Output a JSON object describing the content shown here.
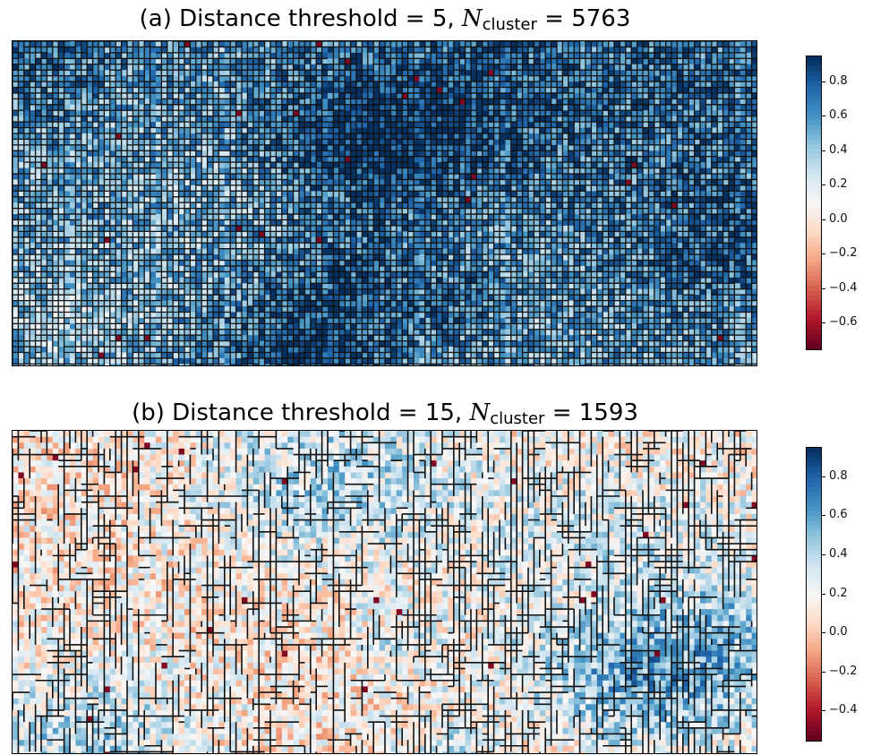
{
  "chart_data": [
    {
      "type": "heatmap",
      "title": {
        "prefix": "(a) Distance threshold = 5, ",
        "symbol": "N",
        "subscript": "cluster",
        "suffix": " = 5763"
      },
      "distance_threshold": 5,
      "n_cluster": 5763,
      "colormap": "RdBu",
      "colorbar": {
        "min": -0.75,
        "max": 0.95,
        "ticks": [
          0.8,
          0.6,
          0.4,
          0.2,
          0.0,
          -0.2,
          -0.4,
          -0.6
        ],
        "tick_labels": [
          "0.8",
          "0.6",
          "0.4",
          "0.2",
          "0.0",
          "−0.2",
          "−0.4",
          "−0.6"
        ]
      },
      "mean_value": 0.55,
      "cluster_block_size": "small",
      "boundaries": "black cluster outlines"
    },
    {
      "type": "heatmap",
      "title": {
        "prefix": "(b) Distance threshold = 15, ",
        "symbol": "N",
        "subscript": "cluster",
        "suffix": " = 1593"
      },
      "distance_threshold": 15,
      "n_cluster": 1593,
      "colormap": "RdBu",
      "colorbar": {
        "min": -0.55,
        "max": 0.95,
        "ticks": [
          0.8,
          0.6,
          0.4,
          0.2,
          0.0,
          -0.2,
          -0.4
        ],
        "tick_labels": [
          "0.8",
          "0.6",
          "0.4",
          "0.2",
          "0.0",
          "−0.2",
          "−0.4"
        ]
      },
      "mean_value": 0.12,
      "cluster_block_size": "large",
      "boundaries": "black cluster outlines"
    }
  ]
}
